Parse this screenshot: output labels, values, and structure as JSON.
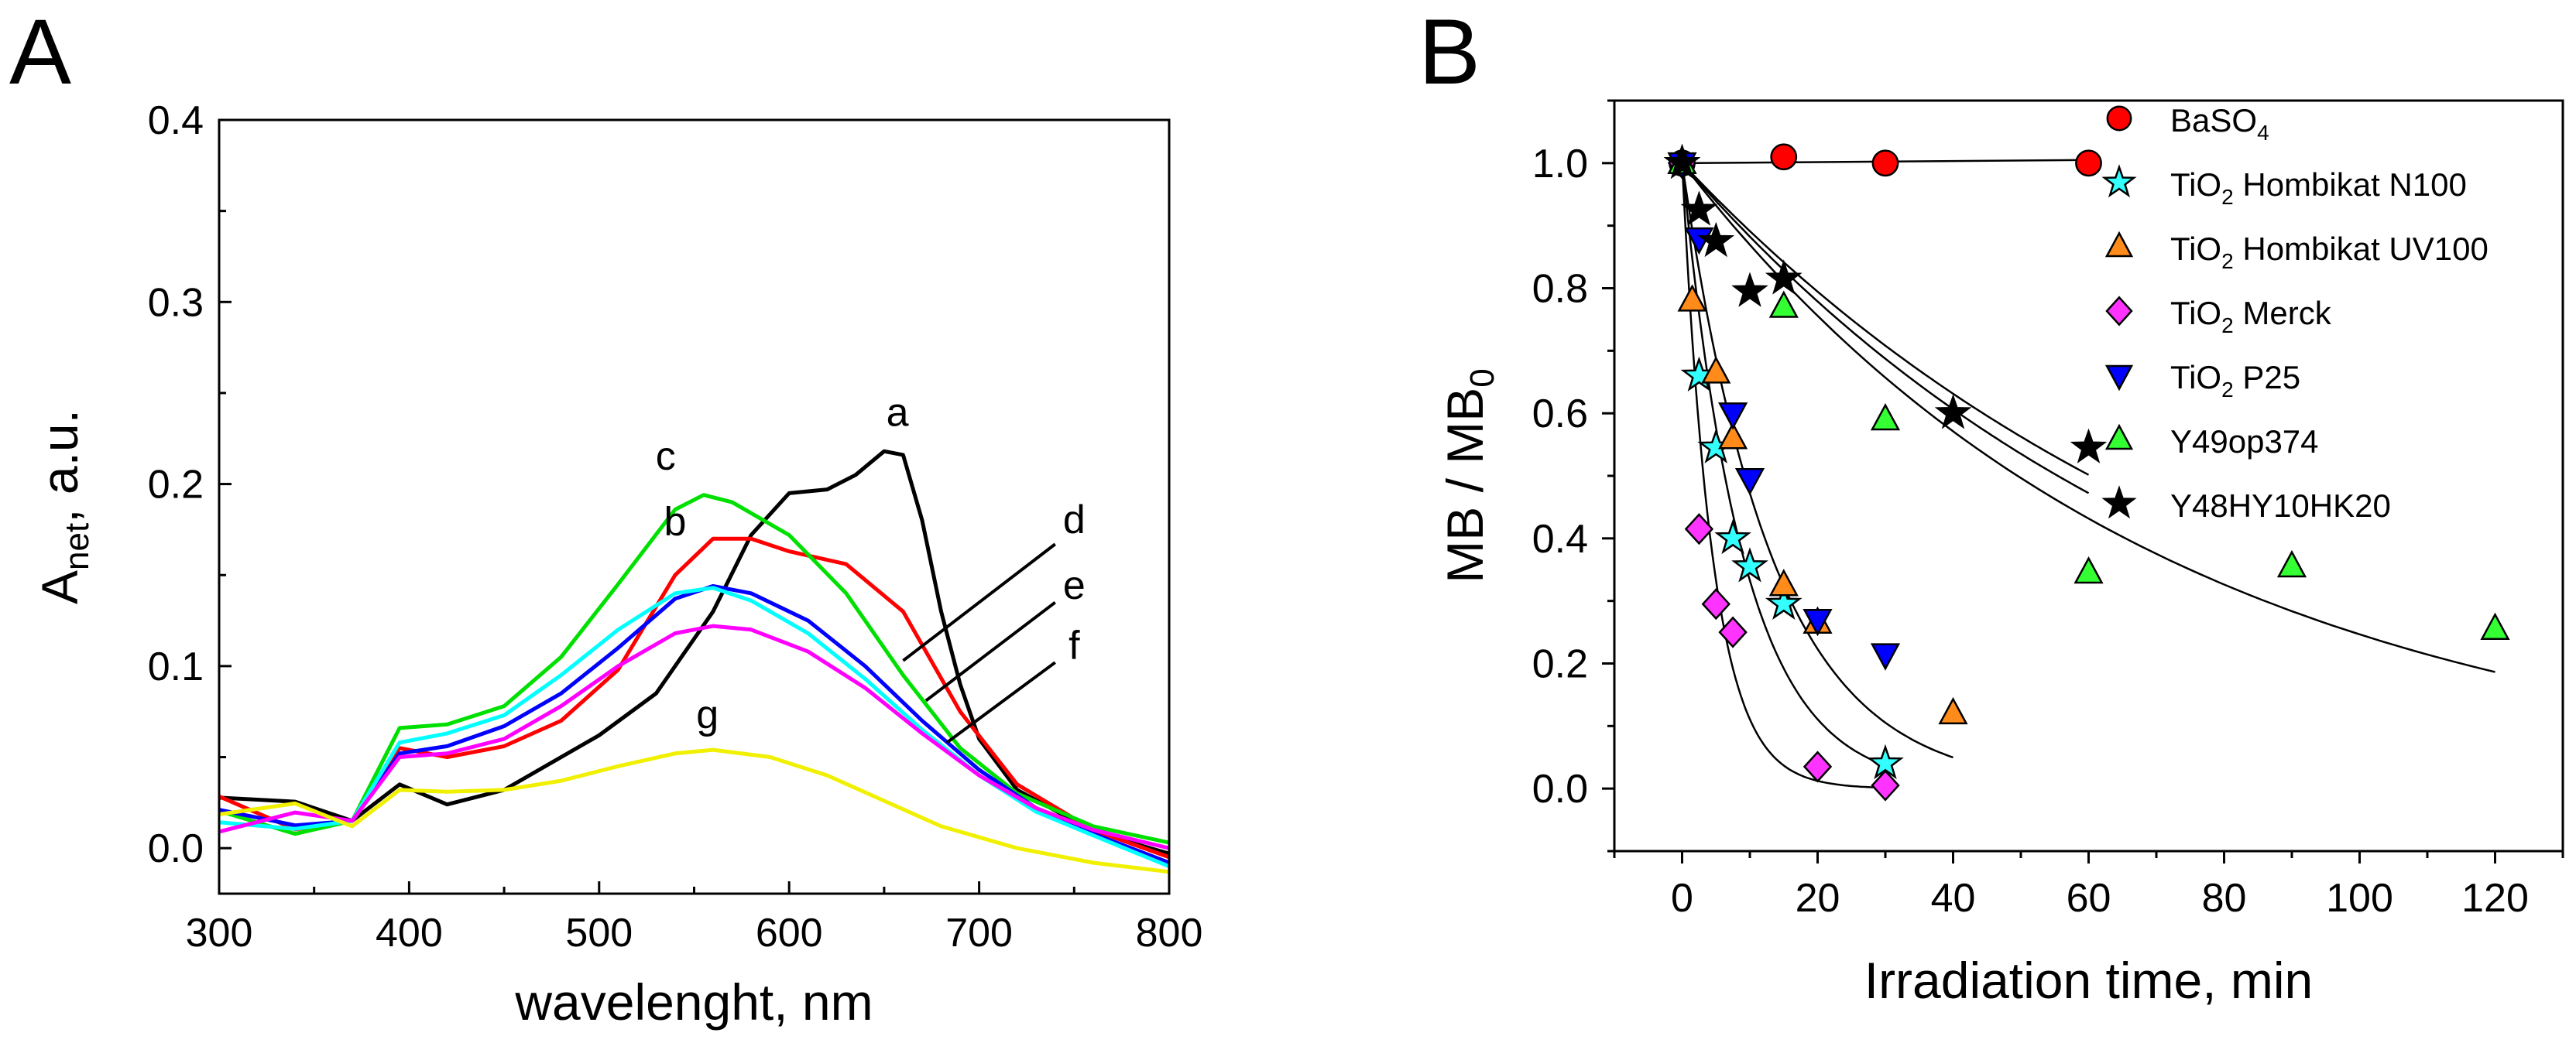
{
  "chart_data": [
    {
      "panel": "A",
      "type": "line",
      "xlabel": "wavelenght, nm",
      "ylabel_main": "A",
      "ylabel_sub": "net",
      "ylabel_rest": ", a.u.",
      "xlim": [
        300,
        800
      ],
      "ylim": [
        -0.025,
        0.4
      ],
      "xticks": [
        "300",
        "400",
        "500",
        "600",
        "700",
        "800"
      ],
      "yticks": [
        "0.0",
        "0.1",
        "0.2",
        "0.3",
        "0.4"
      ],
      "series": [
        {
          "name": "a",
          "color": "#000000",
          "x": [
            300,
            340,
            370,
            395,
            420,
            450,
            500,
            530,
            560,
            580,
            600,
            620,
            635,
            650,
            660,
            670,
            680,
            690,
            700,
            720,
            750,
            780,
            800
          ],
          "y": [
            0.02,
            0.015,
            0.015,
            0.035,
            0.024,
            0.032,
            0.062,
            0.085,
            0.13,
            0.172,
            0.195,
            0.197,
            0.205,
            0.218,
            0.216,
            0.18,
            0.13,
            0.09,
            0.06,
            0.032,
            0.015,
            0.003,
            -0.003
          ]
        },
        {
          "name": "b",
          "color": "#ff0000",
          "x": [
            300,
            340,
            370,
            395,
            420,
            450,
            480,
            510,
            540,
            560,
            580,
            600,
            630,
            660,
            690,
            720,
            760,
            800
          ],
          "y": [
            0.02,
            0.015,
            0.015,
            0.055,
            0.05,
            0.056,
            0.07,
            0.098,
            0.15,
            0.17,
            0.17,
            0.163,
            0.156,
            0.13,
            0.075,
            0.035,
            0.01,
            -0.005
          ]
        },
        {
          "name": "c",
          "color": "#00e000",
          "x": [
            300,
            340,
            370,
            395,
            420,
            450,
            480,
            510,
            540,
            555,
            570,
            600,
            630,
            660,
            690,
            720,
            760,
            800
          ],
          "y": [
            0.02,
            0.015,
            0.015,
            0.066,
            0.068,
            0.078,
            0.105,
            0.145,
            0.186,
            0.194,
            0.19,
            0.172,
            0.14,
            0.095,
            0.055,
            0.03,
            0.012,
            0.003
          ]
        },
        {
          "name": "d",
          "color": "#0000ff",
          "x": [
            300,
            340,
            370,
            395,
            420,
            450,
            480,
            510,
            540,
            560,
            580,
            610,
            640,
            670,
            700,
            730,
            760,
            800
          ],
          "y": [
            0.02,
            0.015,
            0.015,
            0.052,
            0.056,
            0.067,
            0.085,
            0.11,
            0.137,
            0.144,
            0.14,
            0.125,
            0.1,
            0.07,
            0.043,
            0.022,
            0.008,
            -0.008
          ]
        },
        {
          "name": "e",
          "color": "#00ffff",
          "x": [
            300,
            340,
            370,
            395,
            420,
            450,
            480,
            510,
            540,
            560,
            580,
            610,
            640,
            670,
            700,
            730,
            760,
            800
          ],
          "y": [
            0.02,
            0.015,
            0.015,
            0.058,
            0.063,
            0.073,
            0.095,
            0.12,
            0.14,
            0.143,
            0.136,
            0.118,
            0.093,
            0.065,
            0.04,
            0.02,
            0.007,
            -0.01
          ]
        },
        {
          "name": "f",
          "color": "#ff00ff",
          "x": [
            300,
            340,
            370,
            395,
            420,
            450,
            480,
            510,
            540,
            560,
            580,
            610,
            640,
            670,
            700,
            730,
            760,
            800
          ],
          "y": [
            0.02,
            0.015,
            0.015,
            0.05,
            0.052,
            0.06,
            0.078,
            0.1,
            0.118,
            0.122,
            0.12,
            0.108,
            0.088,
            0.063,
            0.04,
            0.022,
            0.01,
            0.0
          ]
        },
        {
          "name": "g",
          "color": "#f0f000",
          "x": [
            300,
            340,
            370,
            395,
            420,
            450,
            480,
            510,
            540,
            560,
            590,
            620,
            650,
            680,
            720,
            760,
            800
          ],
          "y": [
            0.015,
            0.012,
            0.012,
            0.032,
            0.031,
            0.032,
            0.037,
            0.045,
            0.052,
            0.054,
            0.05,
            0.04,
            0.026,
            0.012,
            0.0,
            -0.008,
            -0.013
          ]
        }
      ],
      "annotations": [
        {
          "text": "a",
          "x": 657,
          "y": 0.232
        },
        {
          "text": "c",
          "x": 535,
          "y": 0.208
        },
        {
          "text": "b",
          "x": 540,
          "y": 0.172
        },
        {
          "text": "d",
          "x": 750,
          "y": 0.173
        },
        {
          "text": "e",
          "x": 750,
          "y": 0.137
        },
        {
          "text": "f",
          "x": 750,
          "y": 0.104
        },
        {
          "text": "g",
          "x": 557,
          "y": 0.066
        }
      ],
      "leader_lines": [
        {
          "x1": 740,
          "y1": 0.167,
          "x2": 660,
          "y2": 0.103
        },
        {
          "x1": 740,
          "y1": 0.135,
          "x2": 672,
          "y2": 0.081
        },
        {
          "x1": 740,
          "y1": 0.102,
          "x2": 683,
          "y2": 0.058
        }
      ]
    },
    {
      "panel": "B",
      "type": "scatter",
      "xlabel": "Irradiation time, min",
      "ylabel": "MB / MB",
      "ylabel_sub": "0",
      "xlim": [
        -10,
        130
      ],
      "ylim": [
        -0.1,
        1.1
      ],
      "xticks": [
        "0",
        "20",
        "40",
        "60",
        "80",
        "100",
        "120"
      ],
      "yticks": [
        "0.0",
        "0.2",
        "0.4",
        "0.6",
        "0.8",
        "1.0"
      ],
      "series": [
        {
          "name": "BaSO",
          "sub": "4",
          "rest": "",
          "marker": "circle",
          "color": "#ff0000",
          "x": [
            0,
            15,
            30,
            60
          ],
          "y": [
            1.0,
            1.01,
            1.0,
            1.0
          ]
        },
        {
          "name": "TiO",
          "sub": "2",
          "rest": " Hombikat N100",
          "marker": "star",
          "color": "#33ffff",
          "x": [
            0,
            2.5,
            5,
            7.5,
            10,
            15,
            30
          ],
          "y": [
            1.0,
            0.66,
            0.545,
            0.4,
            0.355,
            0.295,
            0.04
          ]
        },
        {
          "name": "TiO",
          "sub": "2",
          "rest": " Hombikat UV100",
          "marker": "triangle-up",
          "color": "#ff8c1a",
          "x": [
            0,
            1.5,
            5,
            7.5,
            15,
            20,
            40
          ],
          "y": [
            1.0,
            0.78,
            0.665,
            0.56,
            0.325,
            0.265,
            0.12
          ]
        },
        {
          "name": "TiO",
          "sub": "2",
          "rest": " Merck",
          "marker": "diamond",
          "color": "#ff33ff",
          "x": [
            0,
            2.5,
            5,
            7.5,
            20,
            30
          ],
          "y": [
            1.0,
            0.415,
            0.295,
            0.25,
            0.035,
            0.005
          ]
        },
        {
          "name": "TiO",
          "sub": "2",
          "rest": " P25",
          "marker": "triangle-down",
          "color": "#0000ff",
          "x": [
            0,
            2.5,
            7.5,
            10,
            20,
            30
          ],
          "y": [
            1.0,
            0.88,
            0.6,
            0.495,
            0.27,
            0.215
          ]
        },
        {
          "name": "Y49op374",
          "sub": "",
          "rest": "",
          "marker": "triangle-up",
          "color": "#33ff33",
          "x": [
            0,
            15,
            30,
            60,
            90,
            120
          ],
          "y": [
            1.0,
            0.77,
            0.59,
            0.345,
            0.355,
            0.255
          ]
        },
        {
          "name": "Y48HY10HK20",
          "sub": "",
          "rest": "",
          "marker": "star",
          "color": "#000000",
          "x": [
            0,
            2.5,
            5,
            10,
            15,
            40,
            60
          ],
          "y": [
            1.0,
            0.925,
            0.875,
            0.795,
            0.815,
            0.6,
            0.545
          ]
        }
      ],
      "fits": [
        {
          "type": "constant",
          "x": [
            0,
            60
          ],
          "y": [
            1.0,
            1.005
          ]
        },
        {
          "type": "exp",
          "k": 0.22,
          "xmax": 30
        },
        {
          "type": "exp",
          "k": 0.11,
          "xmax": 30
        },
        {
          "type": "exp",
          "k": 0.075,
          "xmax": 40
        },
        {
          "type": "exp",
          "k": 0.014,
          "xmax": 120
        },
        {
          "type": "exp",
          "k": 0.0115,
          "xmax": 60
        },
        {
          "type": "exp",
          "k": 0.0125,
          "xmax": 60
        }
      ]
    }
  ],
  "panel_labels": [
    "A",
    "B"
  ]
}
